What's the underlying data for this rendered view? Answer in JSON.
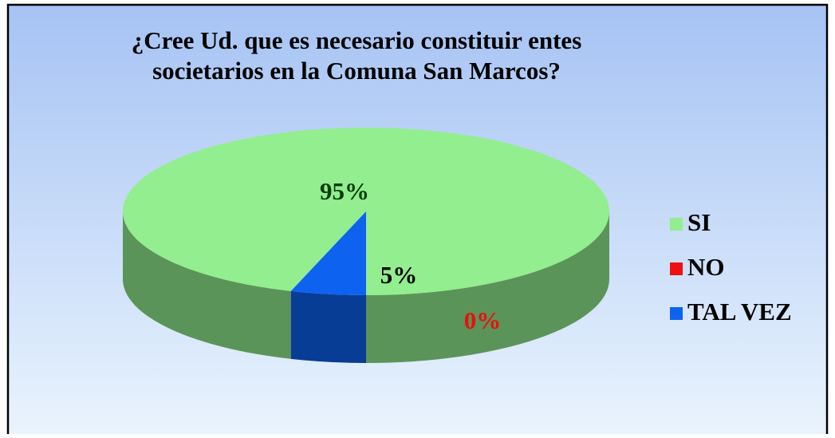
{
  "chart_data": {
    "type": "pie",
    "title": "¿Cree Ud. que es necesario constituir entes societarios en la Comuna San Marcos?",
    "categories": [
      "SI",
      "NO",
      "TAL VEZ"
    ],
    "values": [
      95,
      0,
      5
    ],
    "value_labels": [
      "95%",
      "0%",
      "5%"
    ],
    "colors": [
      "#92ee8e",
      "#ee1111",
      "#0d62f0"
    ],
    "legend": "right"
  }
}
